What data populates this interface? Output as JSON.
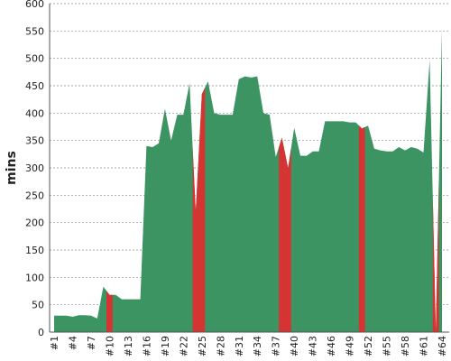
{
  "chart_data": {
    "type": "area",
    "y_label": "mins",
    "categories": [
      "#1",
      null,
      null,
      "#4",
      null,
      null,
      "#7",
      null,
      null,
      "#10",
      null,
      null,
      "#13",
      null,
      null,
      "#16",
      null,
      null,
      "#19",
      null,
      null,
      "#22",
      null,
      null,
      "#25",
      null,
      null,
      "#28",
      null,
      null,
      "#31",
      null,
      null,
      "#34",
      null,
      null,
      "#37",
      null,
      null,
      "#40",
      null,
      null,
      "#43",
      null,
      null,
      "#46",
      null,
      null,
      "#49",
      null,
      null,
      "#52",
      null,
      null,
      "#55",
      null,
      null,
      "#58",
      null,
      null,
      "#61",
      null,
      null,
      "#64"
    ],
    "values": [
      30,
      30,
      30,
      28,
      31,
      31,
      30,
      25,
      83,
      68,
      68,
      60,
      60,
      60,
      60,
      340,
      338,
      345,
      408,
      350,
      397,
      397,
      455,
      220,
      435,
      458,
      400,
      397,
      397,
      397,
      462,
      467,
      465,
      467,
      400,
      397,
      320,
      355,
      300,
      373,
      322,
      322,
      330,
      330,
      385,
      385,
      385,
      385,
      383,
      383,
      372,
      377,
      335,
      332,
      330,
      330,
      338,
      332,
      338,
      335,
      328,
      497,
      0,
      555
    ],
    "color": "#3d9463",
    "highlight_color": "#d63333",
    "highlight": [
      9,
      23,
      24,
      37,
      38,
      50,
      62
    ],
    "ylim": [
      0,
      600
    ],
    "yticks": [
      0,
      50,
      100,
      150,
      200,
      250,
      300,
      350,
      400,
      450,
      500,
      550,
      600
    ],
    "grid": true
  }
}
